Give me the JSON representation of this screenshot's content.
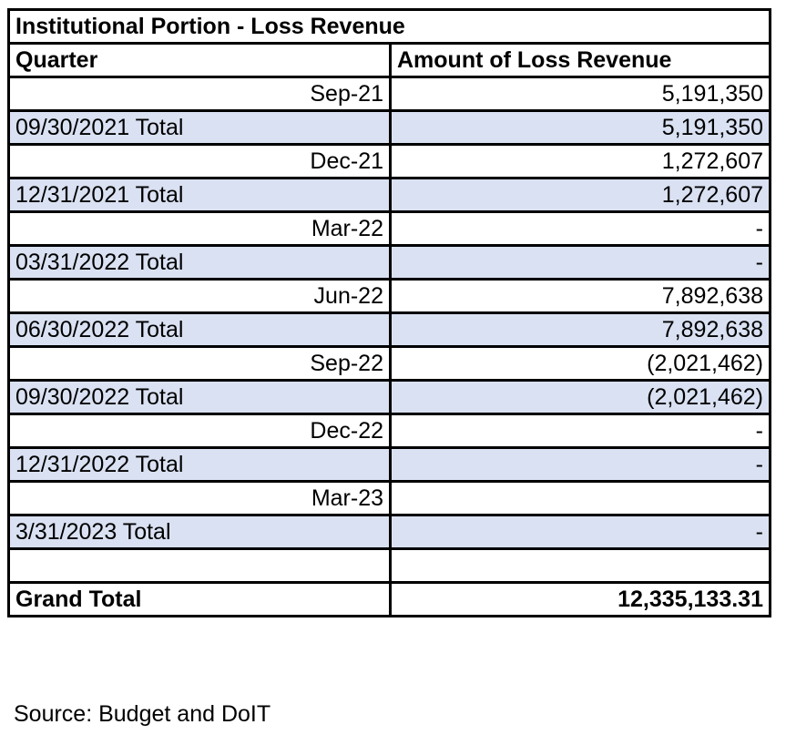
{
  "table": {
    "title": "Institutional Portion - Loss Revenue",
    "header": {
      "quarter": "Quarter",
      "amount": "Amount of Loss Revenue"
    },
    "rows": [
      {
        "type": "quarter",
        "label": "Sep-21",
        "amount": "5,191,350"
      },
      {
        "type": "total",
        "label": "09/30/2021 Total",
        "amount": "5,191,350"
      },
      {
        "type": "quarter",
        "label": "Dec-21",
        "amount": "1,272,607"
      },
      {
        "type": "total",
        "label": "12/31/2021 Total",
        "amount": "1,272,607"
      },
      {
        "type": "quarter",
        "label": "Mar-22",
        "amount": "-"
      },
      {
        "type": "total",
        "label": "03/31/2022 Total",
        "amount": "-"
      },
      {
        "type": "quarter",
        "label": "Jun-22",
        "amount": "7,892,638"
      },
      {
        "type": "total",
        "label": "06/30/2022 Total",
        "amount": "7,892,638"
      },
      {
        "type": "quarter",
        "label": "Sep-22",
        "amount": "(2,021,462)"
      },
      {
        "type": "total",
        "label": "09/30/2022 Total",
        "amount": "(2,021,462)"
      },
      {
        "type": "quarter",
        "label": "Dec-22",
        "amount": "-"
      },
      {
        "type": "total",
        "label": "12/31/2022 Total",
        "amount": "-"
      },
      {
        "type": "quarter",
        "label": "Mar-23",
        "amount": ""
      },
      {
        "type": "total",
        "label": "3/31/2023 Total",
        "amount": "-"
      },
      {
        "type": "blank",
        "label": "",
        "amount": ""
      }
    ],
    "grand_total": {
      "label": "Grand Total",
      "amount": "12,335,133.31"
    }
  },
  "source": "Source:  Budget and DoIT",
  "colors": {
    "total_row_bg": "#d9e1f2",
    "border": "#000000"
  }
}
